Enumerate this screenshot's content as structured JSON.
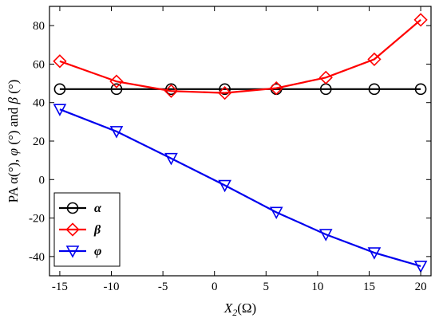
{
  "chart_data": {
    "type": "line",
    "title": "",
    "xlabel_parts": {
      "main": "X",
      "sub": "2",
      "unit": "(Ω)"
    },
    "ylabel_parts": [
      "PA α(°), ",
      "φ",
      " (°) and ",
      "β",
      " (°)"
    ],
    "xlim": [
      -16,
      21
    ],
    "ylim": [
      -50,
      90
    ],
    "xticks": [
      -15,
      -10,
      -5,
      0,
      5,
      10,
      15,
      20
    ],
    "yticks": [
      -40,
      -20,
      0,
      20,
      40,
      60,
      80
    ],
    "x": [
      -15,
      -9.5,
      -4.2,
      1,
      6,
      10.8,
      15.5,
      20
    ],
    "grid": false,
    "legend_position": "bottom-left",
    "series": [
      {
        "name": "α",
        "color": "#000000",
        "marker": "circle",
        "values": [
          47,
          47,
          47,
          47,
          47,
          47,
          47,
          47
        ]
      },
      {
        "name": "β",
        "color": "#ff0000",
        "marker": "diamond",
        "values": [
          61.5,
          51,
          46,
          45,
          47.5,
          53,
          62.5,
          83
        ]
      },
      {
        "name": "φ",
        "color": "#0000ee",
        "marker": "triangle-down",
        "values": [
          36.5,
          25,
          11,
          -3,
          -17,
          -28.5,
          -38,
          -45
        ]
      }
    ]
  }
}
